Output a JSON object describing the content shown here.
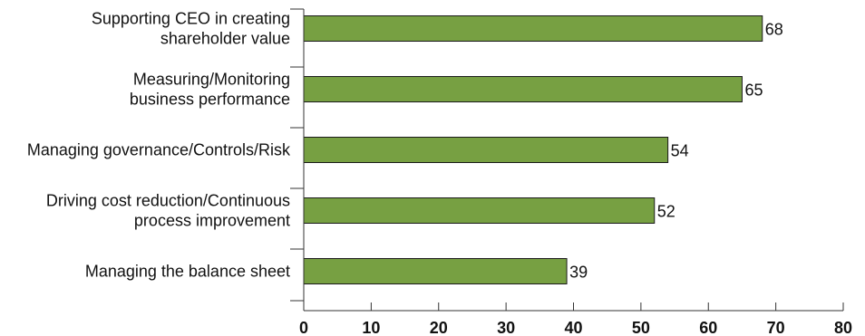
{
  "chart_data": {
    "type": "bar",
    "orientation": "horizontal",
    "categories": [
      [
        "Supporting CEO in creating",
        "shareholder value"
      ],
      [
        "Measuring/Monitoring",
        "business performance"
      ],
      [
        "Managing governance/Controls/Risk"
      ],
      [
        "Driving cost reduction/Continuous",
        "process improvement"
      ],
      [
        "Managing the balance sheet"
      ]
    ],
    "values": [
      68,
      65,
      54,
      52,
      39
    ],
    "xlim": [
      0,
      80
    ],
    "xticks": [
      0,
      10,
      20,
      30,
      40,
      50,
      60,
      70,
      80
    ],
    "grid": false,
    "legend": "none",
    "colors": {
      "bar": "#77a042",
      "bar_border": "#1a1a1a",
      "axis": "#333333",
      "text": "#111111"
    }
  }
}
